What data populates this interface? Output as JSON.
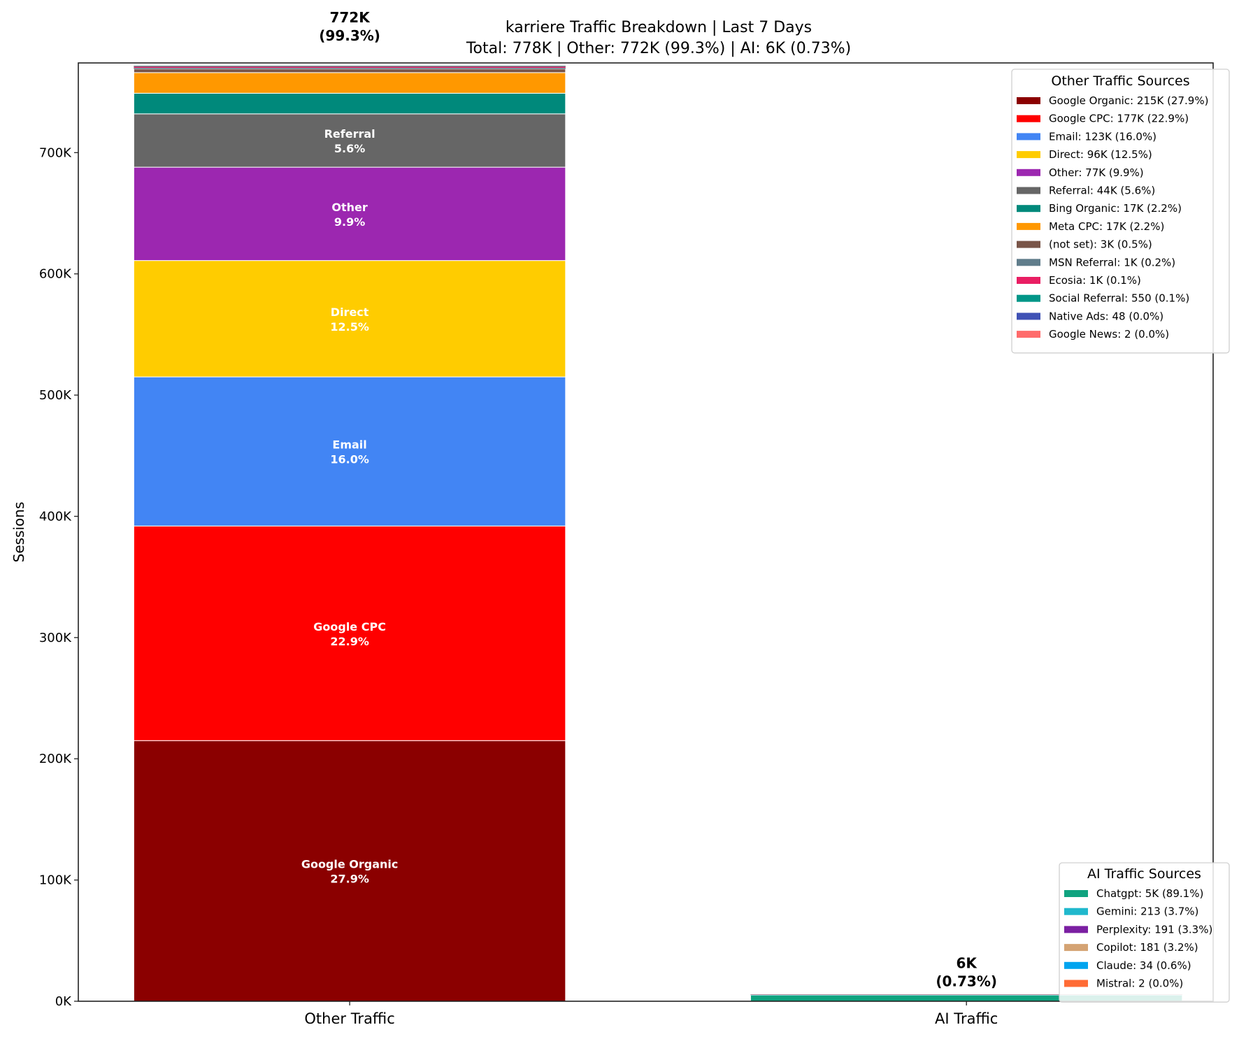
{
  "chart_data": {
    "type": "bar",
    "stacked": true,
    "title": "karriere Traffic Breakdown | Last 7 Days",
    "subtitle": "Total: 778K | Other: 772K (99.3%) | AI: 6K (0.73%)",
    "xlabel": "",
    "ylabel": "Sessions",
    "categories": [
      "Other Traffic",
      "AI Traffic"
    ],
    "ylim": [
      0,
      774000
    ],
    "yticks": [
      0,
      100000,
      200000,
      300000,
      400000,
      500000,
      600000,
      700000
    ],
    "ytick_labels": [
      "0K",
      "100K",
      "200K",
      "300K",
      "400K",
      "500K",
      "600K",
      "700K"
    ],
    "grid": false,
    "bar_totals": [
      {
        "value": "772K",
        "pct": "(99.3%)"
      },
      {
        "value": "6K",
        "pct": "(0.73%)"
      }
    ],
    "other_sources": {
      "legend_title": "Other Traffic Sources",
      "legend_placement": "upper right",
      "items": [
        {
          "name": "Google Organic",
          "value": 215000,
          "pct": 27.9,
          "label": "Google Organic: 215K (27.9%)",
          "color": "#8b0000"
        },
        {
          "name": "Google CPC",
          "value": 177000,
          "pct": 22.9,
          "label": "Google CPC: 177K (22.9%)",
          "color": "#ff0000"
        },
        {
          "name": "Email",
          "value": 123000,
          "pct": 16.0,
          "label": "Email: 123K (16.0%)",
          "color": "#4285f4"
        },
        {
          "name": "Direct",
          "value": 96000,
          "pct": 12.5,
          "label": "Direct: 96K (12.5%)",
          "color": "#ffcc00"
        },
        {
          "name": "Other",
          "value": 77000,
          "pct": 9.9,
          "label": "Other: 77K (9.9%)",
          "color": "#9c27b0"
        },
        {
          "name": "Referral",
          "value": 44000,
          "pct": 5.6,
          "label": "Referral: 44K (5.6%)",
          "color": "#666666"
        },
        {
          "name": "Bing Organic",
          "value": 17000,
          "pct": 2.2,
          "label": "Bing Organic: 17K (2.2%)",
          "color": "#00897b"
        },
        {
          "name": "Meta CPC",
          "value": 17000,
          "pct": 2.2,
          "label": "Meta CPC: 17K (2.2%)",
          "color": "#ff9800"
        },
        {
          "name": "(not set)",
          "value": 3000,
          "pct": 0.5,
          "label": "(not set): 3K (0.5%)",
          "color": "#795548"
        },
        {
          "name": "MSN Referral",
          "value": 1000,
          "pct": 0.2,
          "label": "MSN Referral: 1K (0.2%)",
          "color": "#607d8b"
        },
        {
          "name": "Ecosia",
          "value": 1000,
          "pct": 0.1,
          "label": "Ecosia: 1K (0.1%)",
          "color": "#e91e63"
        },
        {
          "name": "Social Referral",
          "value": 550,
          "pct": 0.1,
          "label": "Social Referral: 550 (0.1%)",
          "color": "#009688"
        },
        {
          "name": "Native Ads",
          "value": 48,
          "pct": 0.0,
          "label": "Native Ads: 48 (0.0%)",
          "color": "#3f51b5"
        },
        {
          "name": "Google News",
          "value": 2,
          "pct": 0.0,
          "label": "Google News: 2 (0.0%)",
          "color": "#ff6b6b"
        }
      ]
    },
    "ai_sources": {
      "legend_title": "AI Traffic Sources",
      "legend_placement": "lower right",
      "items": [
        {
          "name": "Chatgpt",
          "value": 5000,
          "pct": 89.1,
          "label": "Chatgpt: 5K (89.1%)",
          "color": "#10a37f"
        },
        {
          "name": "Gemini",
          "value": 213,
          "pct": 3.7,
          "label": "Gemini: 213 (3.7%)",
          "color": "#20b8cd"
        },
        {
          "name": "Perplexity",
          "value": 191,
          "pct": 3.3,
          "label": "Perplexity: 191 (3.3%)",
          "color": "#7b1fa2"
        },
        {
          "name": "Copilot",
          "value": 181,
          "pct": 3.2,
          "label": "Copilot: 181 (3.2%)",
          "color": "#d4a373"
        },
        {
          "name": "Claude",
          "value": 34,
          "pct": 0.6,
          "label": "Claude: 34 (0.6%)",
          "color": "#00a4ef"
        },
        {
          "name": "Mistral",
          "value": 2,
          "pct": 0.0,
          "label": "Mistral: 2 (0.0%)",
          "color": "#ff6b35"
        }
      ]
    }
  }
}
